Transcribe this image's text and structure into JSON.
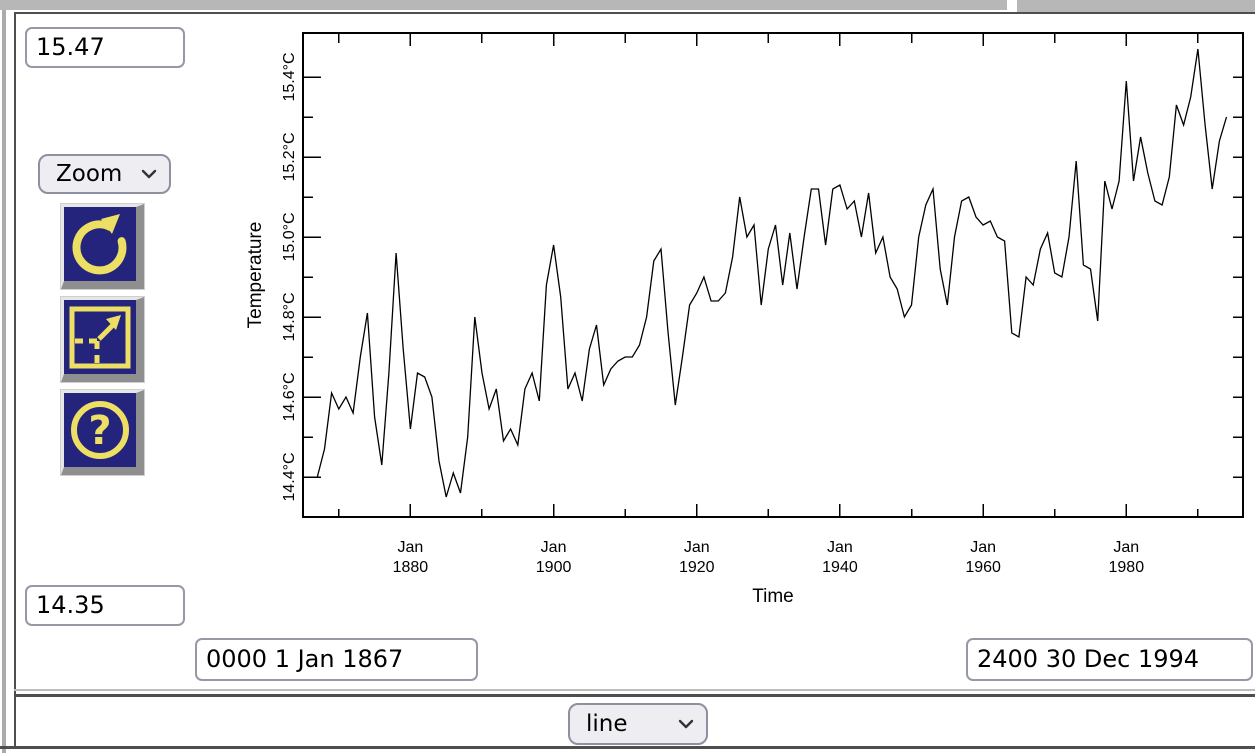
{
  "controls": {
    "y_max": "15.47",
    "y_min": "14.35",
    "mode_select_value": "Zoom",
    "t_start": "0000 1 Jan 1867",
    "t_end": "2400 30 Dec 1994",
    "plot_type_value": "line"
  },
  "icons": {
    "help_glyph": "?"
  },
  "colors": {
    "button_background": "#24247d",
    "button_glyph": "#ecdf63",
    "chrome_gray": "#b7b7b7",
    "frame_dark": "#4e4e4e",
    "control_border": "#9797a7",
    "select_background": "#ededf2",
    "line_color": "#000000"
  },
  "chart_data": {
    "type": "line",
    "title": "",
    "xlabel": "Time",
    "ylabel": "Temperature",
    "legend": "none",
    "grid": false,
    "xlim": [
      1865.0,
      1996.3
    ],
    "ylim": [
      14.3,
      15.51
    ],
    "x_major_ticks": [
      {
        "x": 1880,
        "line1": "Jan",
        "line2": "1880"
      },
      {
        "x": 1900,
        "line1": "Jan",
        "line2": "1900"
      },
      {
        "x": 1920,
        "line1": "Jan",
        "line2": "1920"
      },
      {
        "x": 1940,
        "line1": "Jan",
        "line2": "1940"
      },
      {
        "x": 1960,
        "line1": "Jan",
        "line2": "1960"
      },
      {
        "x": 1980,
        "line1": "Jan",
        "line2": "1980"
      }
    ],
    "x_minor_ticks": [
      1870,
      1890,
      1910,
      1930,
      1950,
      1970,
      1990
    ],
    "y_major_ticks": [
      {
        "v": 14.4,
        "label": "14.4°C"
      },
      {
        "v": 14.6,
        "label": "14.6°C"
      },
      {
        "v": 14.8,
        "label": "14.8°C"
      },
      {
        "v": 15.0,
        "label": "15.0°C"
      },
      {
        "v": 15.2,
        "label": "15.2°C"
      },
      {
        "v": 15.4,
        "label": "15.4°C"
      }
    ],
    "y_minor_ticks": [
      14.5,
      14.7,
      14.9,
      15.1,
      15.3
    ],
    "y_right_ticks": [
      14.4,
      14.5,
      14.6,
      14.7,
      14.8,
      14.9,
      15.0,
      15.1,
      15.2,
      15.3,
      15.4
    ],
    "series": [
      {
        "name": "temperature",
        "x_start": 1867,
        "x_step": 1,
        "x_end": 1994,
        "values": [
          14.4,
          14.47,
          14.61,
          14.57,
          14.6,
          14.56,
          14.7,
          14.81,
          14.55,
          14.43,
          14.66,
          14.96,
          14.72,
          14.52,
          14.66,
          14.65,
          14.6,
          14.44,
          14.35,
          14.41,
          14.36,
          14.5,
          14.8,
          14.66,
          14.57,
          14.62,
          14.49,
          14.52,
          14.48,
          14.62,
          14.66,
          14.59,
          14.88,
          14.98,
          14.85,
          14.62,
          14.66,
          14.59,
          14.72,
          14.78,
          14.63,
          14.67,
          14.69,
          14.7,
          14.7,
          14.73,
          14.8,
          14.94,
          14.97,
          14.76,
          14.58,
          14.7,
          14.83,
          14.86,
          14.9,
          14.84,
          14.84,
          14.86,
          14.95,
          15.1,
          15.0,
          15.03,
          14.83,
          14.97,
          15.03,
          14.88,
          15.01,
          14.87,
          15.0,
          15.12,
          15.12,
          14.98,
          15.12,
          15.13,
          15.07,
          15.09,
          15.0,
          15.11,
          14.96,
          15.0,
          14.9,
          14.87,
          14.8,
          14.83,
          15.0,
          15.08,
          15.12,
          14.92,
          14.83,
          15.0,
          15.09,
          15.1,
          15.05,
          15.03,
          15.04,
          15.0,
          14.99,
          14.76,
          14.75,
          14.9,
          14.88,
          14.97,
          15.01,
          14.91,
          14.9,
          15.0,
          15.19,
          14.93,
          14.92,
          14.79,
          15.14,
          15.07,
          15.14,
          15.39,
          15.14,
          15.25,
          15.16,
          15.09,
          15.08,
          15.15,
          15.33,
          15.28,
          15.35,
          15.47,
          15.28,
          15.12,
          15.24,
          15.3
        ]
      }
    ]
  }
}
